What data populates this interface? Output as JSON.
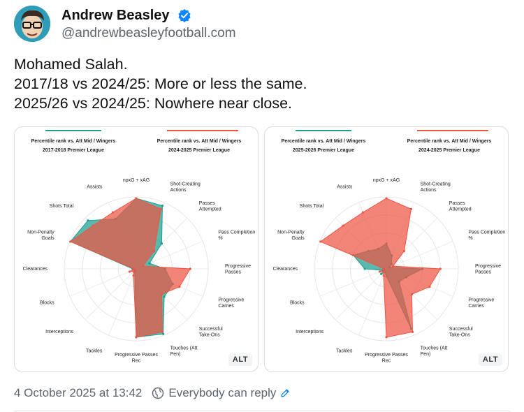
{
  "author": {
    "name": "Andrew Beasley",
    "handle": "@andrewbeasleyfootball.com"
  },
  "post": {
    "lines": [
      "Mohamed Salah.",
      "2017/18 vs 2024/25: More or less the same.",
      "2025/26 vs 2024/25: Nowhere near close."
    ]
  },
  "meta": {
    "timestamp": "4 October 2025 at 13:42",
    "reply_setting": "Everybody can reply"
  },
  "colors": {
    "teal": "#1d9e8e",
    "red": "#ee5544"
  },
  "chart_data": [
    {
      "type": "radar",
      "title": "Mohamed Salah",
      "alt_label": "ALT",
      "left_header": "Percentile rank vs. Att Mid / Wingers",
      "left_subheader": "2017-2018 Premier League",
      "right_header": "Percentile rank vs. Att Mid / Wingers",
      "right_subheader": "2024-2025 Premier League",
      "axes": [
        "npxG + xAG",
        "Shot-Creating Actions",
        "Passes Attempted",
        "Pass Completion %",
        "Progressive Passes",
        "Progressive Carries",
        "Successful Take-Ons",
        "Touches (Att Pen)",
        "Progressive Passes Rec",
        "Tackles",
        "Interceptions",
        "Blocks",
        "Clearances",
        "Non-Penalty Goals",
        "Shots Total",
        "Assists"
      ],
      "series": [
        {
          "name": "2017-2018 Premier League",
          "color": "#1d9e8e",
          "values": [
            98,
            95,
            50,
            20,
            40,
            55,
            55,
            98,
            95,
            5,
            3,
            3,
            5,
            99,
            95,
            75
          ]
        },
        {
          "name": "2024-2025 Premier League",
          "color": "#ee5544",
          "values": [
            98,
            90,
            35,
            10,
            75,
            65,
            50,
            95,
            95,
            10,
            5,
            10,
            3,
            99,
            85,
            85
          ]
        }
      ],
      "rlim": [
        0,
        100
      ]
    },
    {
      "type": "radar",
      "title": "Mohamed Salah",
      "alt_label": "ALT",
      "left_header": "Percentile rank vs. Att Mid / Wingers",
      "left_subheader": "2025-2026 Premier League",
      "right_header": "Percentile rank vs. Att Mid / Wingers",
      "right_subheader": "2024-2025 Premier League",
      "axes": [
        "npxG + xAG",
        "Shot-Creating Actions",
        "Passes Attempted",
        "Pass Completion %",
        "Progressive Passes",
        "Progressive Carries",
        "Successful Take-Ons",
        "Touches (Att Pen)",
        "Progressive Passes Rec",
        "Tackles",
        "Interceptions",
        "Blocks",
        "Clearances",
        "Non-Penalty Goals",
        "Shots Total",
        "Assists"
      ],
      "series": [
        {
          "name": "2025-2026 Premier League",
          "color": "#1d9e8e",
          "values": [
            35,
            20,
            10,
            5,
            50,
            30,
            25,
            90,
            10,
            5,
            10,
            5,
            30,
            50,
            35,
            30
          ]
        },
        {
          "name": "2024-2025 Premier League",
          "color": "#ee5544",
          "values": [
            98,
            90,
            35,
            10,
            75,
            65,
            50,
            95,
            95,
            10,
            5,
            10,
            3,
            99,
            85,
            85
          ]
        }
      ],
      "rlim": [
        0,
        100
      ]
    }
  ]
}
